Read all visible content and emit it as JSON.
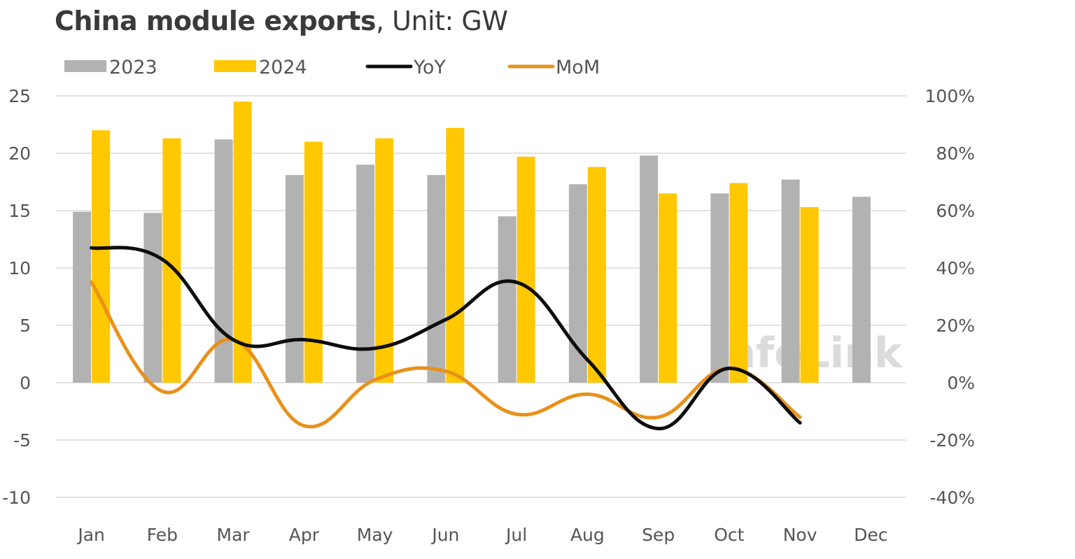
{
  "title": {
    "bold": "China module exports",
    "light": ", Unit: GW"
  },
  "watermark": "InfoLink",
  "colors": {
    "s2023": "#b2b2b2",
    "s2024": "#ffc800",
    "yoy": "#0d0d0d",
    "mom": "#e8911a",
    "grid": "#d9d9d9"
  },
  "chart_data": {
    "type": "bar",
    "categories": [
      "Jan",
      "Feb",
      "Mar",
      "Apr",
      "May",
      "Jun",
      "Jul",
      "Aug",
      "Sep",
      "Oct",
      "Nov",
      "Dec"
    ],
    "series": [
      {
        "name": "2023",
        "kind": "bar",
        "axis": "left",
        "values": [
          14.9,
          14.8,
          21.2,
          18.1,
          19.0,
          18.1,
          14.5,
          17.3,
          19.8,
          16.5,
          17.7,
          16.2
        ]
      },
      {
        "name": "2024",
        "kind": "bar",
        "axis": "left",
        "values": [
          22.0,
          21.3,
          24.5,
          21.0,
          21.3,
          22.2,
          19.7,
          18.8,
          16.5,
          17.4,
          15.3,
          null
        ]
      },
      {
        "name": "YoY",
        "kind": "line",
        "axis": "right",
        "values": [
          47,
          43,
          15,
          15,
          12,
          22,
          35,
          8,
          -16,
          5,
          -14,
          null
        ]
      },
      {
        "name": "MoM",
        "kind": "line",
        "axis": "right",
        "values": [
          35,
          -3,
          15,
          -15,
          1,
          4,
          -11,
          -4,
          -12,
          5,
          -12,
          null
        ]
      }
    ],
    "y_left": {
      "min": -10,
      "max": 25,
      "ticks": [
        "-10",
        "-5",
        "0",
        "5",
        "10",
        "15",
        "20",
        "25"
      ]
    },
    "y_right": {
      "min": -40,
      "max": 100,
      "ticks": [
        "-40%",
        "-20%",
        "0%",
        "20%",
        "40%",
        "60%",
        "80%",
        "100%"
      ]
    },
    "grid": true,
    "legend_position": "top-left"
  }
}
